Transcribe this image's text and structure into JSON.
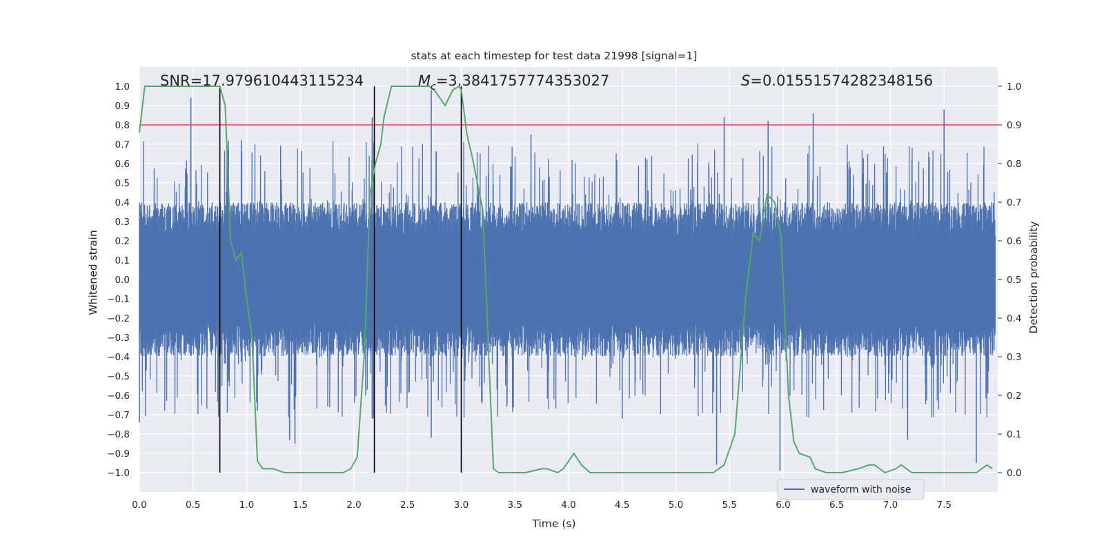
{
  "chart_data": {
    "type": "line",
    "title": "stats at each timestep for test data 21998 [signal=1]",
    "xlabel": "Time (s)",
    "ylabel": "Whitened strain",
    "y2label": "Detection probability",
    "xlim": [
      0.0,
      8.0
    ],
    "ylim": [
      -1.1,
      1.1
    ],
    "y2lim": [
      -0.05,
      1.05
    ],
    "xticks": [
      "0.0",
      "0.5",
      "1.0",
      "1.5",
      "2.0",
      "2.5",
      "3.0",
      "3.5",
      "4.0",
      "4.5",
      "5.0",
      "5.5",
      "6.0",
      "6.5",
      "7.0",
      "7.5"
    ],
    "yticks": [
      "1.0",
      "0.9",
      "0.8",
      "0.7",
      "0.6",
      "0.5",
      "0.4",
      "0.3",
      "0.2",
      "0.1",
      "0.0",
      "−0.1",
      "−0.2",
      "−0.3",
      "−0.4",
      "−0.5",
      "−0.6",
      "−0.7",
      "−0.8",
      "−0.9",
      "−1.0"
    ],
    "y2ticks": [
      "1.0",
      "0.9",
      "0.8",
      "0.7",
      "0.6",
      "0.5",
      "0.4",
      "0.3",
      "0.2",
      "0.1",
      "0.0"
    ],
    "grid": true,
    "legend": {
      "entries": [
        "waveform with noise"
      ],
      "position": "lower-right"
    },
    "annotations": {
      "snr": "SNR=17.979610443115234",
      "mc_symbol": "M",
      "mc_sub": "c",
      "mc_value": "=3.3841757774353027",
      "s_symbol": "S",
      "s_value": "=0.01551574282348156"
    },
    "threshold": {
      "value_y2": 0.9,
      "color": "#c44e52"
    },
    "event_lines_x": [
      0.75,
      2.19,
      3.0
    ],
    "series": [
      {
        "name": "waveform with noise",
        "axis": "left",
        "color": "#4c72b0",
        "style": "dense noisy strain",
        "bulk_amplitude": 0.4,
        "spikes": [
          {
            "x": 0.0,
            "y": -0.74
          },
          {
            "x": 0.48,
            "y": 0.94
          },
          {
            "x": 1.1,
            "y": -0.68
          },
          {
            "x": 1.45,
            "y": -0.85
          },
          {
            "x": 1.4,
            "y": -0.83
          },
          {
            "x": 2.17,
            "y": 0.84
          },
          {
            "x": 2.72,
            "y": 0.98
          },
          {
            "x": 2.72,
            "y": -0.82
          },
          {
            "x": 2.17,
            "y": -0.72
          },
          {
            "x": 5.38,
            "y": -0.96
          },
          {
            "x": 5.45,
            "y": 0.84
          },
          {
            "x": 5.97,
            "y": -0.99
          },
          {
            "x": 6.28,
            "y": 0.86
          },
          {
            "x": 7.5,
            "y": 0.88
          },
          {
            "x": 7.8,
            "y": -0.95
          },
          {
            "x": 5.86,
            "y": 0.82
          },
          {
            "x": 7.16,
            "y": -0.83
          },
          {
            "x": 0.95,
            "y": 0.72
          },
          {
            "x": 3.65,
            "y": 0.75
          },
          {
            "x": 4.5,
            "y": -0.72
          }
        ]
      },
      {
        "name": "detection probability",
        "axis": "right",
        "color": "#55a868",
        "x": [
          0.0,
          0.05,
          0.1,
          0.2,
          0.3,
          0.4,
          0.5,
          0.6,
          0.7,
          0.75,
          0.8,
          0.85,
          0.9,
          0.95,
          1.0,
          1.05,
          1.1,
          1.15,
          1.25,
          1.35,
          1.5,
          1.65,
          1.8,
          1.9,
          1.97,
          2.03,
          2.1,
          2.15,
          2.2,
          2.25,
          2.28,
          2.35,
          2.4,
          2.5,
          2.6,
          2.7,
          2.75,
          2.8,
          2.85,
          2.92,
          2.98,
          3.0,
          3.05,
          3.1,
          3.2,
          3.3,
          3.35,
          3.45,
          3.6,
          3.75,
          3.8,
          3.9,
          3.95,
          4.05,
          4.12,
          4.2,
          4.4,
          4.6,
          4.8,
          5.0,
          5.2,
          5.35,
          5.45,
          5.55,
          5.65,
          5.72,
          5.78,
          5.85,
          5.92,
          5.98,
          6.05,
          6.1,
          6.15,
          6.25,
          6.3,
          6.4,
          6.55,
          6.7,
          6.8,
          6.85,
          6.9,
          6.95,
          7.05,
          7.1,
          7.2,
          7.35,
          7.5,
          7.65,
          7.72,
          7.8,
          7.85,
          7.9,
          7.95
        ],
        "y": [
          0.88,
          1.0,
          1.0,
          1.0,
          1.0,
          1.0,
          1.0,
          1.0,
          1.0,
          1.0,
          0.95,
          0.6,
          0.55,
          0.57,
          0.45,
          0.35,
          0.03,
          0.01,
          0.01,
          0.0,
          0.0,
          0.0,
          0.0,
          0.0,
          0.01,
          0.04,
          0.32,
          0.72,
          0.8,
          0.85,
          0.92,
          1.0,
          1.0,
          1.0,
          1.0,
          1.0,
          0.99,
          0.97,
          0.95,
          0.99,
          1.0,
          0.99,
          0.88,
          0.82,
          0.68,
          0.01,
          0.0,
          0.0,
          0.0,
          0.01,
          0.01,
          0.0,
          0.01,
          0.05,
          0.02,
          0.0,
          0.0,
          0.0,
          0.0,
          0.0,
          0.0,
          0.0,
          0.02,
          0.1,
          0.45,
          0.62,
          0.6,
          0.72,
          0.7,
          0.61,
          0.2,
          0.08,
          0.05,
          0.04,
          0.01,
          0.0,
          0.0,
          0.01,
          0.02,
          0.02,
          0.01,
          0.0,
          0.01,
          0.02,
          0.0,
          0.0,
          0.0,
          0.0,
          0.0,
          0.0,
          0.01,
          0.02,
          0.01
        ]
      }
    ]
  }
}
